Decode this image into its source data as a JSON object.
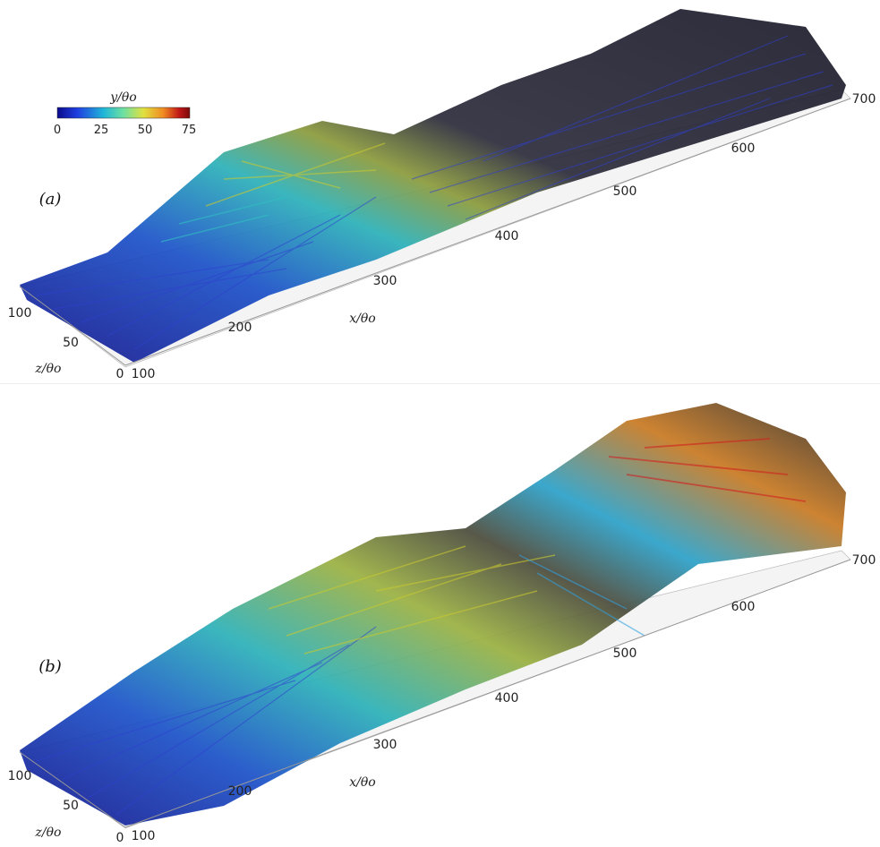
{
  "colorbar": {
    "label": "y/θo",
    "ticks": [
      "0",
      "25",
      "50",
      "75"
    ],
    "colors": [
      "#0a0a8c",
      "#1f3fe0",
      "#1fb6d8",
      "#6ee0a0",
      "#e0e040",
      "#f08a20",
      "#c01818",
      "#7a0a0a"
    ]
  },
  "panels": [
    {
      "id": "a",
      "label": "(a)",
      "x_axis": {
        "label": "x/θo",
        "ticks": [
          "100",
          "200",
          "300",
          "400",
          "500",
          "600",
          "700"
        ]
      },
      "z_axis": {
        "label": "z/θo",
        "ticks": [
          "0",
          "50",
          "100"
        ]
      }
    },
    {
      "id": "b",
      "label": "(b)",
      "x_axis": {
        "label": "x/θo",
        "ticks": [
          "100",
          "200",
          "300",
          "400",
          "500",
          "600",
          "700"
        ]
      },
      "z_axis": {
        "label": "z/θo",
        "ticks": [
          "0",
          "50",
          "100"
        ]
      }
    }
  ]
}
